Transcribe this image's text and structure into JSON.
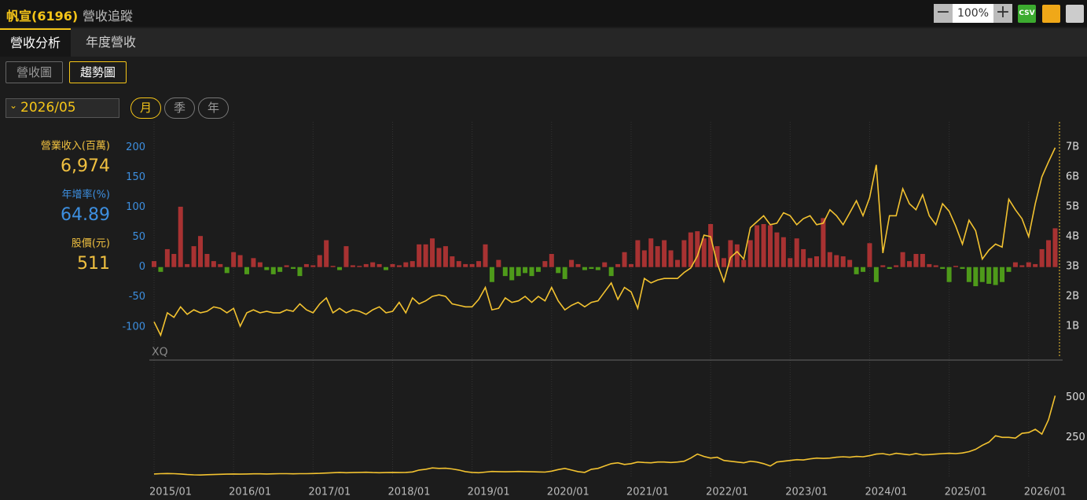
{
  "header": {
    "title": "帆宣(6196)",
    "subtitle": "營收追蹤",
    "zoom": "100%",
    "csv": "CSV"
  },
  "tabs": [
    "營收分析",
    "年度營收"
  ],
  "views": [
    "營收圖",
    "趨勢圖"
  ],
  "date": "2026/05",
  "periods": [
    "月",
    "季",
    "年"
  ],
  "stats": [
    {
      "label": "營業收入(百萬)",
      "value": "6,974"
    },
    {
      "label": "年增率(%)",
      "value": "64.89"
    },
    {
      "label": "股價(元)",
      "value": "511"
    }
  ],
  "watermark": "XQ",
  "chart_data": [
    {
      "type": "bar",
      "grid": true,
      "x": [
        "2015/01",
        "2015/02",
        "2015/03",
        "2015/04",
        "2015/05",
        "2015/06",
        "2015/07",
        "2015/08",
        "2015/09",
        "2015/10",
        "2015/11",
        "2015/12",
        "2016/01",
        "2016/02",
        "2016/03",
        "2016/04",
        "2016/05",
        "2016/06",
        "2016/07",
        "2016/08",
        "2016/09",
        "2016/10",
        "2016/11",
        "2016/12",
        "2017/01",
        "2017/02",
        "2017/03",
        "2017/04",
        "2017/05",
        "2017/06",
        "2017/07",
        "2017/08",
        "2017/09",
        "2017/10",
        "2017/11",
        "2017/12",
        "2018/01",
        "2018/02",
        "2018/03",
        "2018/04",
        "2018/05",
        "2018/06",
        "2018/07",
        "2018/08",
        "2018/09",
        "2018/10",
        "2018/11",
        "2018/12",
        "2019/01",
        "2019/02",
        "2019/03",
        "2019/04",
        "2019/05",
        "2019/06",
        "2019/07",
        "2019/08",
        "2019/09",
        "2019/10",
        "2019/11",
        "2019/12",
        "2020/01",
        "2020/02",
        "2020/03",
        "2020/04",
        "2020/05",
        "2020/06",
        "2020/07",
        "2020/08",
        "2020/09",
        "2020/10",
        "2020/11",
        "2020/12",
        "2021/01",
        "2021/02",
        "2021/03",
        "2021/04",
        "2021/05",
        "2021/06",
        "2021/07",
        "2021/08",
        "2021/09",
        "2021/10",
        "2021/11",
        "2021/12",
        "2022/01",
        "2022/02",
        "2022/03",
        "2022/04",
        "2022/05",
        "2022/06",
        "2022/07",
        "2022/08",
        "2022/09",
        "2022/10",
        "2022/11",
        "2022/12",
        "2023/01",
        "2023/02",
        "2023/03",
        "2023/04",
        "2023/05",
        "2023/06",
        "2023/07",
        "2023/08",
        "2023/09",
        "2023/10",
        "2023/11",
        "2023/12",
        "2024/01",
        "2024/02",
        "2024/03",
        "2024/04",
        "2024/05",
        "2024/06",
        "2024/07",
        "2024/08",
        "2024/09",
        "2024/10",
        "2024/11",
        "2024/12",
        "2025/01",
        "2025/02",
        "2025/03",
        "2025/04",
        "2025/05",
        "2025/06",
        "2025/07",
        "2025/08",
        "2025/09",
        "2025/10",
        "2025/11",
        "2025/12",
        "2026/01",
        "2026/02",
        "2026/03",
        "2026/04",
        "2026/05"
      ],
      "xticks": [
        "2015/01",
        "2016/01",
        "2017/01",
        "2018/01",
        "2019/01",
        "2020/01",
        "2021/01",
        "2022/01",
        "2023/01",
        "2024/01",
        "2025/01",
        "2026/01"
      ],
      "ylim": [
        -149,
        243
      ],
      "yticks": [
        -100,
        -50,
        0,
        50,
        100,
        150,
        200
      ],
      "y2lim": [
        0,
        7840
      ],
      "y2ticks": [
        {
          "value": 1000,
          "label": "1B"
        },
        {
          "value": 2000,
          "label": "2B"
        },
        {
          "value": 3000,
          "label": "3B"
        },
        {
          "value": 4000,
          "label": "4B"
        },
        {
          "value": 5000,
          "label": "5B"
        },
        {
          "value": 6000,
          "label": "6B"
        },
        {
          "value": 7000,
          "label": "7B"
        }
      ],
      "series": [
        {
          "color": "#a83232",
          "negative_color": "#4e9a1a",
          "values": [
            10,
            -8,
            30,
            22,
            101,
            5,
            35,
            52,
            22,
            10,
            5,
            -10,
            25,
            20,
            -12,
            15,
            8,
            -5,
            -12,
            -8,
            3,
            -3,
            -15,
            5,
            3,
            20,
            45,
            2,
            -5,
            35,
            3,
            2,
            5,
            8,
            5,
            -5,
            5,
            3,
            8,
            10,
            38,
            38,
            48,
            32,
            35,
            18,
            10,
            5,
            5,
            10,
            38,
            -25,
            12,
            -15,
            -22,
            -15,
            -10,
            -15,
            -8,
            10,
            22,
            -10,
            -20,
            12,
            5,
            -5,
            -3,
            -5,
            8,
            -15,
            5,
            25,
            5,
            45,
            28,
            48,
            35,
            45,
            28,
            12,
            45,
            58,
            60,
            48,
            72,
            35,
            15,
            45,
            38,
            12,
            45,
            70,
            72,
            70,
            58,
            50,
            15,
            48,
            30,
            15,
            18,
            82,
            25,
            20,
            18,
            12,
            -12,
            -8,
            40,
            -25,
            3,
            -3,
            3,
            25,
            10,
            22,
            22,
            5,
            3,
            -3,
            -25,
            2,
            -3,
            -25,
            -32,
            -25,
            -28,
            -30,
            -25,
            -8,
            8,
            3,
            8,
            5,
            30,
            45,
            64.89
          ]
        },
        {
          "type": "line",
          "axis": "y2",
          "color": "#f2c230",
          "values": [
            1150,
            700,
            1450,
            1300,
            1650,
            1400,
            1550,
            1450,
            1500,
            1650,
            1600,
            1450,
            1600,
            1000,
            1450,
            1550,
            1450,
            1500,
            1450,
            1450,
            1550,
            1500,
            1750,
            1550,
            1450,
            1750,
            1950,
            1450,
            1600,
            1450,
            1550,
            1500,
            1400,
            1550,
            1650,
            1450,
            1500,
            1800,
            1450,
            1950,
            1750,
            1850,
            2000,
            2050,
            2000,
            1750,
            1700,
            1650,
            1650,
            1900,
            2300,
            1550,
            1600,
            1950,
            1800,
            1850,
            2000,
            1800,
            2000,
            1850,
            2300,
            1850,
            1550,
            1700,
            1800,
            1650,
            1800,
            1850,
            2150,
            2450,
            1900,
            2300,
            2150,
            1600,
            2600,
            2450,
            2550,
            2600,
            2600,
            2600,
            2800,
            2950,
            3350,
            4050,
            4000,
            3100,
            2500,
            3300,
            3500,
            3250,
            4300,
            4500,
            4700,
            4400,
            4450,
            4800,
            4700,
            4400,
            4600,
            4700,
            4400,
            4450,
            4900,
            4700,
            4400,
            4800,
            5200,
            4700,
            5300,
            6400,
            3450,
            4700,
            4700,
            5600,
            5100,
            4900,
            5400,
            4700,
            4400,
            5100,
            4850,
            4350,
            3750,
            4550,
            4200,
            3250,
            3550,
            3750,
            3650,
            5250,
            4900,
            4600,
            4000,
            5100,
            6000,
            6500,
            6974
          ]
        }
      ]
    },
    {
      "type": "line",
      "ylim": [
        0,
        700
      ],
      "yticks": [
        250,
        500
      ],
      "series": [
        {
          "color": "#f2c230",
          "values": [
            20,
            22,
            23,
            22,
            20,
            17,
            15,
            14,
            16,
            17,
            18,
            19,
            20,
            19,
            20,
            21,
            21,
            20,
            21,
            22,
            22,
            21,
            22,
            22,
            23,
            24,
            26,
            28,
            30,
            28,
            29,
            30,
            31,
            29,
            28,
            29,
            30,
            29,
            30,
            33,
            45,
            50,
            58,
            55,
            56,
            52,
            45,
            35,
            30,
            28,
            32,
            36,
            35,
            34,
            35,
            36,
            35,
            34,
            33,
            32,
            38,
            48,
            55,
            45,
            35,
            30,
            50,
            55,
            70,
            85,
            90,
            80,
            85,
            95,
            92,
            90,
            95,
            95,
            92,
            95,
            100,
            120,
            145,
            130,
            120,
            125,
            105,
            100,
            95,
            90,
            100,
            95,
            85,
            70,
            95,
            100,
            105,
            110,
            108,
            115,
            120,
            118,
            120,
            125,
            128,
            125,
            130,
            128,
            135,
            145,
            148,
            140,
            150,
            145,
            140,
            148,
            140,
            142,
            145,
            148,
            150,
            148,
            152,
            160,
            175,
            200,
            220,
            260,
            250,
            250,
            245,
            275,
            280,
            300,
            270,
            360,
            511
          ]
        }
      ]
    }
  ]
}
